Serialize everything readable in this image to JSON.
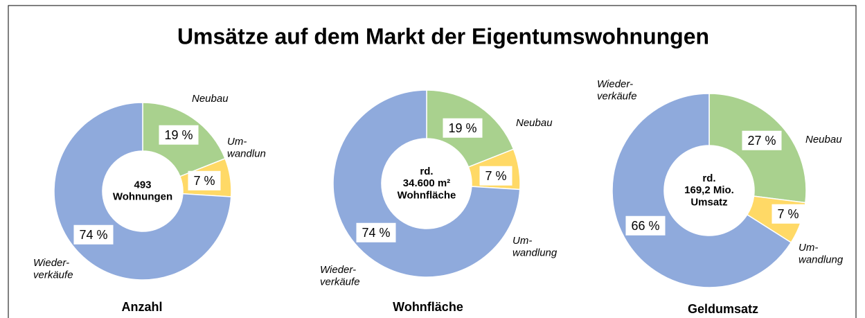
{
  "title": "Umsätze auf dem Markt der Eigentumswohnungen",
  "chart_data": [
    {
      "type": "donut",
      "title": "Anzahl",
      "center_label": "493\nWohnungen",
      "categories": [
        "Neubau",
        "Um-\nwandlun",
        "Wieder-\nverkäufe"
      ],
      "values": [
        19,
        7,
        74
      ],
      "value_labels": [
        "19 %",
        "7 %",
        "74 %"
      ],
      "colors": [
        "#a9d18e",
        "#ffd966",
        "#8faadc"
      ]
    },
    {
      "type": "donut",
      "title": "Wohnfläche",
      "center_label": "rd.\n34.600 m²\nWohnfläche",
      "categories": [
        "Neubau",
        "Um-\nwandlung",
        "Wieder-\nverkäufe"
      ],
      "values": [
        19,
        7,
        74
      ],
      "value_labels": [
        "19 %",
        "7 %",
        "74 %"
      ],
      "colors": [
        "#a9d18e",
        "#ffd966",
        "#8faadc"
      ]
    },
    {
      "type": "donut",
      "title": "Geldumsatz",
      "center_label": "rd.\n169,2 Mio.\nUmsatz",
      "categories": [
        "Neubau",
        "Um-\nwandlung",
        "Wieder-\nverkäufe"
      ],
      "values": [
        27,
        7,
        66
      ],
      "value_labels": [
        "27 %",
        "7 %",
        "66 %"
      ],
      "colors": [
        "#a9d18e",
        "#ffd966",
        "#8faadc"
      ]
    }
  ]
}
